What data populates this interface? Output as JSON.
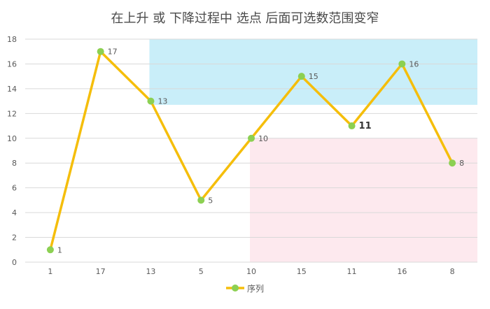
{
  "chart_data": {
    "type": "line",
    "title": "在上升 或 下降过程中 选点 后面可选数范围变窄",
    "categories": [
      "1",
      "17",
      "13",
      "5",
      "10",
      "15",
      "11",
      "16",
      "8"
    ],
    "series": [
      {
        "name": "序列",
        "values": [
          1,
          17,
          13,
          5,
          10,
          15,
          11,
          16,
          8
        ]
      }
    ],
    "data_labels": [
      "1",
      "17",
      "13",
      "5",
      "10",
      "15",
      "11",
      "16",
      "8"
    ],
    "ylim": [
      0,
      18
    ],
    "yticks": [
      "0",
      "2",
      "4",
      "6",
      "8",
      "10",
      "12",
      "14",
      "16",
      "18"
    ],
    "grid": true,
    "legend": "bottom",
    "highlight_regions": [
      {
        "from_category": 2,
        "y_range": [
          12.7,
          18
        ],
        "color": "#c9eef9"
      },
      {
        "from_category": 4,
        "y_range": [
          0,
          10
        ],
        "color": "#fde9ee"
      }
    ],
    "colors": {
      "line": "#f5be0b",
      "marker": "#8cd052",
      "grid": "#d9d9d9",
      "text": "#595959",
      "title": "#4a4a4a"
    }
  }
}
